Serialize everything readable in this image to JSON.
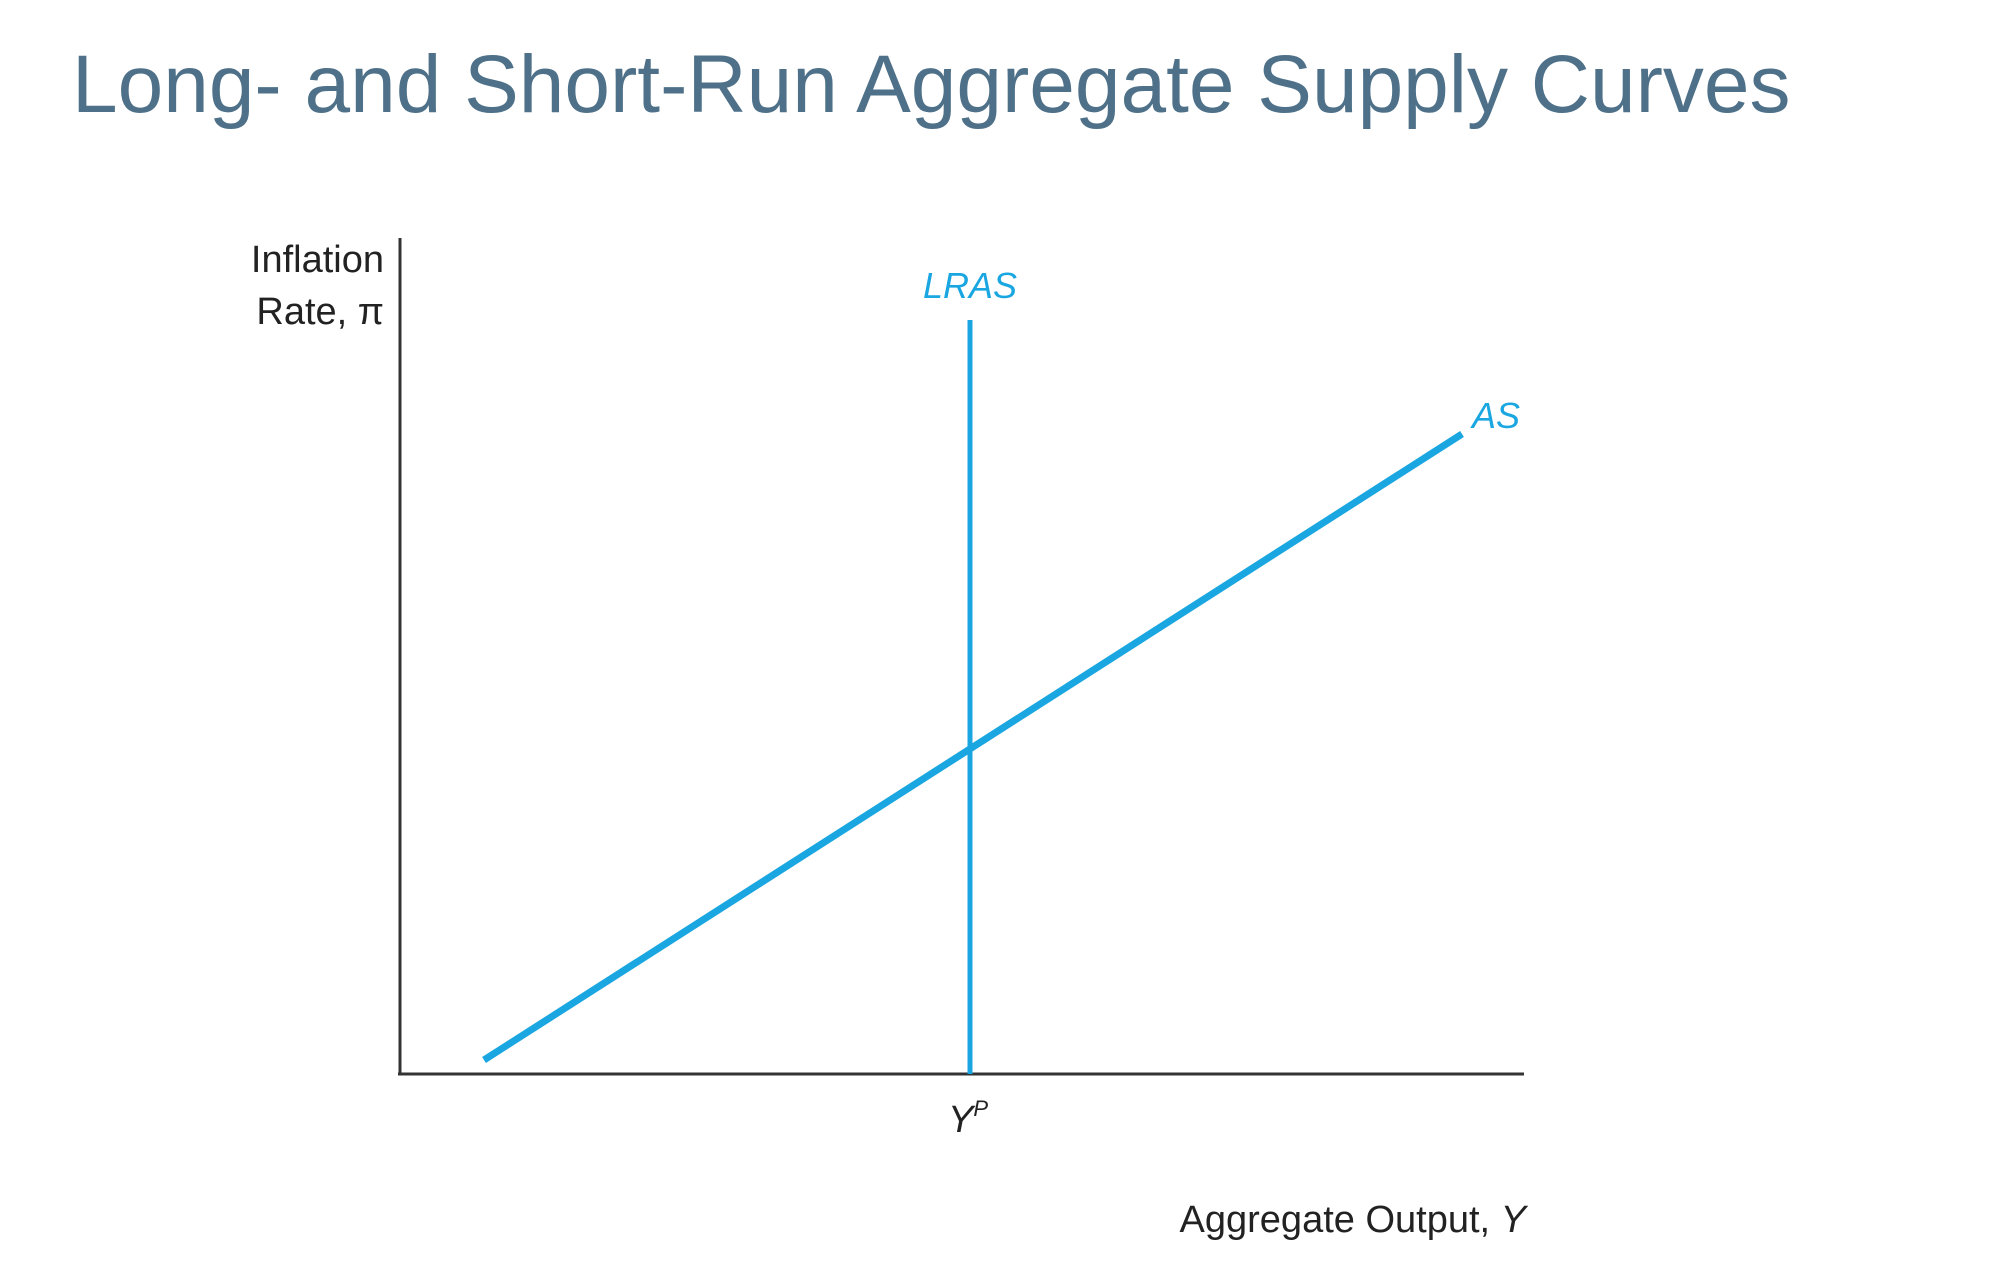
{
  "slide": {
    "title": "Long- and Short-Run Aggregate Supply Curves"
  },
  "diagram": {
    "y_axis_label_line1": "Inflation",
    "y_axis_label_line2": "Rate, π",
    "x_axis_label_text": "Aggregate Output, ",
    "x_axis_label_var": "Y",
    "x_tick_base": "Y",
    "x_tick_sup": "P",
    "lras_label": "LRAS",
    "as_label": "AS",
    "curve_color": "#1aa6e0",
    "axis_color": "#333333",
    "title_color": "#4e7189"
  }
}
